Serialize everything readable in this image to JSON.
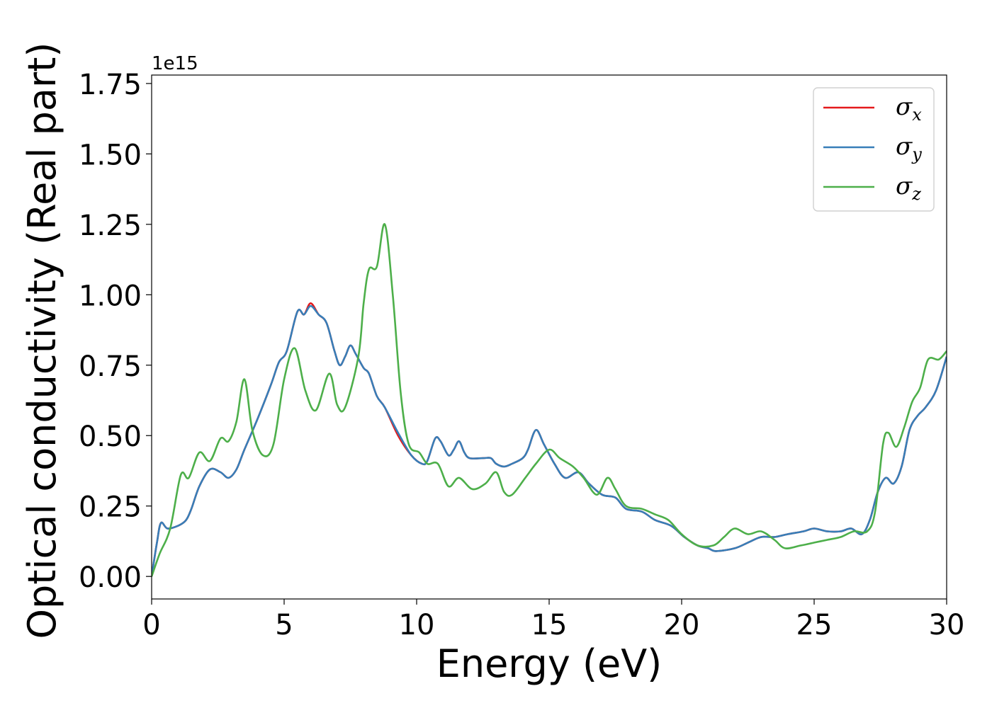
{
  "chart_data": {
    "type": "line",
    "title": "",
    "xlabel": "Energy (eV)",
    "ylabel": "Optical conductivity (Real part)",
    "y_offset_label": "1e15",
    "xlim": [
      0,
      30
    ],
    "ylim": [
      -0.08,
      1.78
    ],
    "y_scale": 1000000000000000.0,
    "grid": false,
    "legend_position": "top-right",
    "x_ticks": [
      0,
      5,
      10,
      15,
      20,
      25,
      30
    ],
    "x_tick_labels": [
      "0",
      "5",
      "10",
      "15",
      "20",
      "25",
      "30"
    ],
    "y_ticks": [
      0.0,
      0.25,
      0.5,
      0.75,
      1.0,
      1.25,
      1.5,
      1.75
    ],
    "y_tick_labels": [
      "0.00",
      "0.25",
      "0.50",
      "0.75",
      "1.00",
      "1.25",
      "1.50",
      "1.75"
    ],
    "series": [
      {
        "name": "σx",
        "legend_base": "σ",
        "legend_sub": "x",
        "color": "#e41a1c",
        "points": [
          [
            0,
            0.0
          ],
          [
            0.2,
            0.12
          ],
          [
            0.35,
            0.19
          ],
          [
            0.6,
            0.17
          ],
          [
            1.0,
            0.18
          ],
          [
            1.3,
            0.2
          ],
          [
            1.5,
            0.24
          ],
          [
            1.8,
            0.32
          ],
          [
            2.2,
            0.38
          ],
          [
            2.6,
            0.37
          ],
          [
            2.9,
            0.35
          ],
          [
            3.2,
            0.38
          ],
          [
            3.5,
            0.45
          ],
          [
            4.0,
            0.56
          ],
          [
            4.5,
            0.68
          ],
          [
            4.8,
            0.76
          ],
          [
            5.1,
            0.8
          ],
          [
            5.5,
            0.94
          ],
          [
            5.75,
            0.93
          ],
          [
            6.0,
            0.97
          ],
          [
            6.3,
            0.93
          ],
          [
            6.6,
            0.9
          ],
          [
            6.9,
            0.8
          ],
          [
            7.1,
            0.75
          ],
          [
            7.3,
            0.78
          ],
          [
            7.5,
            0.82
          ],
          [
            7.7,
            0.79
          ],
          [
            8.0,
            0.74
          ],
          [
            8.2,
            0.72
          ],
          [
            8.5,
            0.64
          ],
          [
            8.8,
            0.6
          ],
          [
            9.3,
            0.5
          ],
          [
            9.8,
            0.43
          ],
          [
            10.2,
            0.4
          ],
          [
            10.4,
            0.41
          ],
          [
            10.7,
            0.49
          ],
          [
            10.9,
            0.48
          ],
          [
            11.2,
            0.43
          ],
          [
            11.4,
            0.45
          ],
          [
            11.6,
            0.48
          ],
          [
            11.8,
            0.44
          ],
          [
            12.0,
            0.42
          ],
          [
            12.5,
            0.42
          ],
          [
            12.8,
            0.42
          ],
          [
            13.0,
            0.4
          ],
          [
            13.3,
            0.39
          ],
          [
            13.6,
            0.4
          ],
          [
            14.0,
            0.42
          ],
          [
            14.2,
            0.45
          ],
          [
            14.5,
            0.52
          ],
          [
            14.8,
            0.47
          ],
          [
            15.2,
            0.4
          ],
          [
            15.6,
            0.35
          ],
          [
            16.1,
            0.37
          ],
          [
            16.5,
            0.33
          ],
          [
            17.0,
            0.29
          ],
          [
            17.5,
            0.28
          ],
          [
            17.9,
            0.24
          ],
          [
            18.5,
            0.23
          ],
          [
            19.0,
            0.2
          ],
          [
            19.6,
            0.18
          ],
          [
            20.1,
            0.14
          ],
          [
            20.6,
            0.11
          ],
          [
            21.0,
            0.1
          ],
          [
            21.3,
            0.09
          ],
          [
            22.0,
            0.1
          ],
          [
            22.5,
            0.12
          ],
          [
            23.0,
            0.14
          ],
          [
            23.5,
            0.14
          ],
          [
            24.0,
            0.15
          ],
          [
            24.6,
            0.16
          ],
          [
            25.0,
            0.17
          ],
          [
            25.5,
            0.16
          ],
          [
            26.0,
            0.16
          ],
          [
            26.4,
            0.17
          ],
          [
            26.8,
            0.15
          ],
          [
            27.1,
            0.2
          ],
          [
            27.4,
            0.3
          ],
          [
            27.7,
            0.35
          ],
          [
            28.0,
            0.33
          ],
          [
            28.3,
            0.39
          ],
          [
            28.6,
            0.52
          ],
          [
            28.9,
            0.57
          ],
          [
            29.2,
            0.6
          ],
          [
            29.6,
            0.66
          ],
          [
            30.0,
            0.78
          ]
        ]
      },
      {
        "name": "σy",
        "legend_base": "σ",
        "legend_sub": "y",
        "color": "#377eb8",
        "points": [
          [
            0,
            0.0
          ],
          [
            0.2,
            0.12
          ],
          [
            0.35,
            0.19
          ],
          [
            0.6,
            0.17
          ],
          [
            1.0,
            0.18
          ],
          [
            1.3,
            0.2
          ],
          [
            1.5,
            0.24
          ],
          [
            1.8,
            0.32
          ],
          [
            2.2,
            0.38
          ],
          [
            2.6,
            0.37
          ],
          [
            2.9,
            0.35
          ],
          [
            3.2,
            0.38
          ],
          [
            3.5,
            0.45
          ],
          [
            4.0,
            0.56
          ],
          [
            4.5,
            0.68
          ],
          [
            4.8,
            0.76
          ],
          [
            5.1,
            0.8
          ],
          [
            5.5,
            0.94
          ],
          [
            5.75,
            0.93
          ],
          [
            6.0,
            0.96
          ],
          [
            6.3,
            0.93
          ],
          [
            6.6,
            0.9
          ],
          [
            6.9,
            0.8
          ],
          [
            7.1,
            0.75
          ],
          [
            7.3,
            0.78
          ],
          [
            7.5,
            0.82
          ],
          [
            7.7,
            0.79
          ],
          [
            8.0,
            0.74
          ],
          [
            8.2,
            0.72
          ],
          [
            8.5,
            0.64
          ],
          [
            8.8,
            0.6
          ],
          [
            9.3,
            0.51
          ],
          [
            9.8,
            0.43
          ],
          [
            10.2,
            0.4
          ],
          [
            10.4,
            0.41
          ],
          [
            10.7,
            0.49
          ],
          [
            10.9,
            0.48
          ],
          [
            11.2,
            0.43
          ],
          [
            11.4,
            0.45
          ],
          [
            11.6,
            0.48
          ],
          [
            11.8,
            0.44
          ],
          [
            12.0,
            0.42
          ],
          [
            12.5,
            0.42
          ],
          [
            12.8,
            0.42
          ],
          [
            13.0,
            0.4
          ],
          [
            13.3,
            0.39
          ],
          [
            13.6,
            0.4
          ],
          [
            14.0,
            0.42
          ],
          [
            14.2,
            0.45
          ],
          [
            14.5,
            0.52
          ],
          [
            14.8,
            0.47
          ],
          [
            15.2,
            0.4
          ],
          [
            15.6,
            0.35
          ],
          [
            16.1,
            0.37
          ],
          [
            16.5,
            0.33
          ],
          [
            17.0,
            0.29
          ],
          [
            17.5,
            0.28
          ],
          [
            17.9,
            0.24
          ],
          [
            18.5,
            0.23
          ],
          [
            19.0,
            0.2
          ],
          [
            19.6,
            0.18
          ],
          [
            20.1,
            0.14
          ],
          [
            20.6,
            0.11
          ],
          [
            21.0,
            0.1
          ],
          [
            21.3,
            0.09
          ],
          [
            22.0,
            0.1
          ],
          [
            22.5,
            0.12
          ],
          [
            23.0,
            0.14
          ],
          [
            23.5,
            0.14
          ],
          [
            24.0,
            0.15
          ],
          [
            24.6,
            0.16
          ],
          [
            25.0,
            0.17
          ],
          [
            25.5,
            0.16
          ],
          [
            26.0,
            0.16
          ],
          [
            26.4,
            0.17
          ],
          [
            26.8,
            0.15
          ],
          [
            27.1,
            0.2
          ],
          [
            27.4,
            0.3
          ],
          [
            27.7,
            0.35
          ],
          [
            28.0,
            0.33
          ],
          [
            28.3,
            0.39
          ],
          [
            28.6,
            0.52
          ],
          [
            28.9,
            0.57
          ],
          [
            29.2,
            0.6
          ],
          [
            29.6,
            0.66
          ],
          [
            30.0,
            0.78
          ]
        ]
      },
      {
        "name": "σz",
        "legend_base": "σ",
        "legend_sub": "z",
        "color": "#4daf4a",
        "points": [
          [
            0,
            0.0
          ],
          [
            0.3,
            0.08
          ],
          [
            0.7,
            0.17
          ],
          [
            1.1,
            0.36
          ],
          [
            1.4,
            0.35
          ],
          [
            1.8,
            0.44
          ],
          [
            2.2,
            0.41
          ],
          [
            2.6,
            0.49
          ],
          [
            2.9,
            0.48
          ],
          [
            3.2,
            0.55
          ],
          [
            3.5,
            0.7
          ],
          [
            3.8,
            0.52
          ],
          [
            4.2,
            0.43
          ],
          [
            4.6,
            0.47
          ],
          [
            5.0,
            0.7
          ],
          [
            5.4,
            0.81
          ],
          [
            5.8,
            0.66
          ],
          [
            6.2,
            0.59
          ],
          [
            6.7,
            0.72
          ],
          [
            7.0,
            0.61
          ],
          [
            7.3,
            0.6
          ],
          [
            7.8,
            0.78
          ],
          [
            8.0,
            0.97
          ],
          [
            8.2,
            1.09
          ],
          [
            8.5,
            1.1
          ],
          [
            8.8,
            1.25
          ],
          [
            9.1,
            1.0
          ],
          [
            9.4,
            0.65
          ],
          [
            9.7,
            0.47
          ],
          [
            10.1,
            0.44
          ],
          [
            10.4,
            0.4
          ],
          [
            10.8,
            0.4
          ],
          [
            11.2,
            0.32
          ],
          [
            11.6,
            0.35
          ],
          [
            12.1,
            0.31
          ],
          [
            12.6,
            0.33
          ],
          [
            13.0,
            0.37
          ],
          [
            13.3,
            0.3
          ],
          [
            13.6,
            0.29
          ],
          [
            14.1,
            0.35
          ],
          [
            14.5,
            0.4
          ],
          [
            15.0,
            0.45
          ],
          [
            15.4,
            0.42
          ],
          [
            15.9,
            0.39
          ],
          [
            16.3,
            0.35
          ],
          [
            16.8,
            0.29
          ],
          [
            17.2,
            0.35
          ],
          [
            17.5,
            0.31
          ],
          [
            17.9,
            0.25
          ],
          [
            18.5,
            0.24
          ],
          [
            19.0,
            0.22
          ],
          [
            19.5,
            0.2
          ],
          [
            20.0,
            0.15
          ],
          [
            20.6,
            0.11
          ],
          [
            21.2,
            0.11
          ],
          [
            21.6,
            0.14
          ],
          [
            22.0,
            0.17
          ],
          [
            22.5,
            0.15
          ],
          [
            23.0,
            0.16
          ],
          [
            23.5,
            0.13
          ],
          [
            23.9,
            0.1
          ],
          [
            24.5,
            0.11
          ],
          [
            25.0,
            0.12
          ],
          [
            25.5,
            0.13
          ],
          [
            26.0,
            0.14
          ],
          [
            26.5,
            0.16
          ],
          [
            27.0,
            0.16
          ],
          [
            27.3,
            0.23
          ],
          [
            27.6,
            0.47
          ],
          [
            27.8,
            0.51
          ],
          [
            28.1,
            0.46
          ],
          [
            28.4,
            0.53
          ],
          [
            28.7,
            0.62
          ],
          [
            29.0,
            0.67
          ],
          [
            29.3,
            0.77
          ],
          [
            29.7,
            0.77
          ],
          [
            30.0,
            0.8
          ]
        ]
      }
    ]
  }
}
